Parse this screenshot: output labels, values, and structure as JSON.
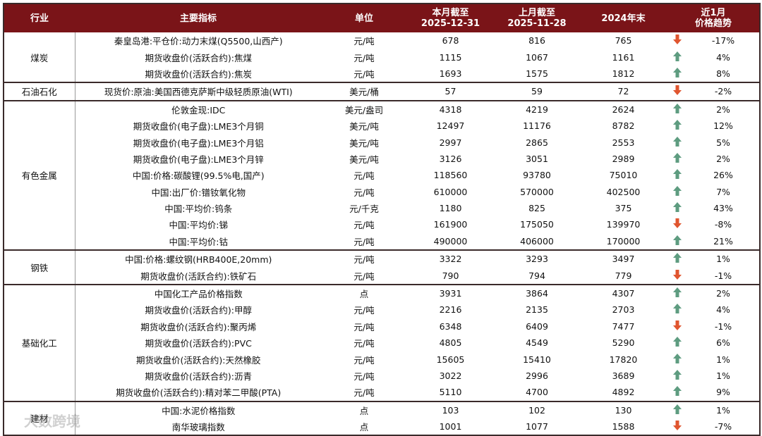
{
  "table": {
    "columns": [
      "行业",
      "主要指标",
      "单位",
      "本月截至\n2025-12-31",
      "上月截至\n2025-11-28",
      "2024年末",
      "近1月\n价格趋势"
    ],
    "groups": [
      {
        "industry": "煤炭",
        "rows": [
          {
            "indicator": "秦皇岛港:平仓价:动力末煤(Q5500,山西产)",
            "unit": "元/吨",
            "current": 678,
            "previous": 816,
            "year_end": 765,
            "arrow": "down",
            "trend": "-17%"
          },
          {
            "indicator": "期货收盘价(活跃合约):焦煤",
            "unit": "元/吨",
            "current": 1115,
            "previous": 1067,
            "year_end": 1161,
            "arrow": "up",
            "trend": "4%"
          },
          {
            "indicator": "期货收盘价(活跃合约):焦炭",
            "unit": "元/吨",
            "current": 1693,
            "previous": 1575,
            "year_end": 1812,
            "arrow": "up",
            "trend": "8%"
          }
        ]
      },
      {
        "industry": "石油石化",
        "rows": [
          {
            "indicator": "现货价:原油:美国西德克萨斯中级轻质原油(WTI)",
            "unit": "美元/桶",
            "current": 57,
            "previous": 59,
            "year_end": 72,
            "arrow": "down",
            "trend": "-2%"
          }
        ]
      },
      {
        "industry": "有色金属",
        "rows": [
          {
            "indicator": "伦敦金现:IDC",
            "unit": "美元/盎司",
            "current": 4318,
            "previous": 4219,
            "year_end": 2624,
            "arrow": "up",
            "trend": "2%"
          },
          {
            "indicator": "期货收盘价(电子盘):LME3个月铜",
            "unit": "美元/吨",
            "current": 12497,
            "previous": 11176,
            "year_end": 8782,
            "arrow": "up",
            "trend": "12%"
          },
          {
            "indicator": "期货收盘价(电子盘):LME3个月铝",
            "unit": "美元/吨",
            "current": 2997,
            "previous": 2865,
            "year_end": 2553,
            "arrow": "up",
            "trend": "5%"
          },
          {
            "indicator": "期货收盘价(电子盘):LME3个月锌",
            "unit": "美元/吨",
            "current": 3126,
            "previous": 3051,
            "year_end": 2989,
            "arrow": "up",
            "trend": "2%"
          },
          {
            "indicator": "中国:价格:碳酸锂(99.5%电,国产)",
            "unit": "元/吨",
            "current": 118560,
            "previous": 93780,
            "year_end": 75010,
            "arrow": "up",
            "trend": "26%"
          },
          {
            "indicator": "中国:出厂价:镨钕氧化物",
            "unit": "元/吨",
            "current": 610000,
            "previous": 570000,
            "year_end": 402500,
            "arrow": "up",
            "trend": "7%"
          },
          {
            "indicator": "中国:平均价:钨条",
            "unit": "元/千克",
            "current": 1180,
            "previous": 825,
            "year_end": 375,
            "arrow": "up",
            "trend": "43%"
          },
          {
            "indicator": "中国:平均价:锑",
            "unit": "元/吨",
            "current": 161900,
            "previous": 175050,
            "year_end": 139970,
            "arrow": "down",
            "trend": "-8%"
          },
          {
            "indicator": "中国:平均价:钴",
            "unit": "元/吨",
            "current": 490000,
            "previous": 406000,
            "year_end": 170000,
            "arrow": "up",
            "trend": "21%"
          }
        ]
      },
      {
        "industry": "钢铁",
        "rows": [
          {
            "indicator": "中国:价格:螺纹钢(HRB400E,20mm)",
            "unit": "元/吨",
            "current": 3322,
            "previous": 3293,
            "year_end": 3497,
            "arrow": "up",
            "trend": "1%"
          },
          {
            "indicator": "期货收盘价(活跃合约):铁矿石",
            "unit": "元/吨",
            "current": 790,
            "previous": 794,
            "year_end": 779,
            "arrow": "down",
            "trend": "-1%"
          }
        ]
      },
      {
        "industry": "基础化工",
        "rows": [
          {
            "indicator": "中国化工产品价格指数",
            "unit": "点",
            "current": 3931,
            "previous": 3864,
            "year_end": 4307,
            "arrow": "up",
            "trend": "2%"
          },
          {
            "indicator": "期货收盘价(活跃合约):甲醇",
            "unit": "元/吨",
            "current": 2216,
            "previous": 2135,
            "year_end": 2703,
            "arrow": "up",
            "trend": "4%"
          },
          {
            "indicator": "期货收盘价(活跃合约):聚丙烯",
            "unit": "元/吨",
            "current": 6348,
            "previous": 6409,
            "year_end": 7477,
            "arrow": "down",
            "trend": "-1%"
          },
          {
            "indicator": "期货收盘价(活跃合约):PVC",
            "unit": "元/吨",
            "current": 4805,
            "previous": 4549,
            "year_end": 5290,
            "arrow": "up",
            "trend": "6%"
          },
          {
            "indicator": "期货收盘价(活跃合约):天然橡胶",
            "unit": "元/吨",
            "current": 15605,
            "previous": 15410,
            "year_end": 17820,
            "arrow": "up",
            "trend": "1%"
          },
          {
            "indicator": "期货收盘价(活跃合约):沥青",
            "unit": "元/吨",
            "current": 3022,
            "previous": 2996,
            "year_end": 3689,
            "arrow": "up",
            "trend": "1%"
          },
          {
            "indicator": "期货收盘价(活跃合约):精对苯二甲酸(PTA)",
            "unit": "元/吨",
            "current": 5110,
            "previous": 4700,
            "year_end": 4892,
            "arrow": "up",
            "trend": "9%"
          }
        ]
      },
      {
        "industry": "建材",
        "rows": [
          {
            "indicator": "中国:水泥价格指数",
            "unit": "点",
            "current": 103,
            "previous": 102,
            "year_end": 130,
            "arrow": "up",
            "trend": "1%"
          },
          {
            "indicator": "南华玻璃指数",
            "unit": "点",
            "current": 1001,
            "previous": 1077,
            "year_end": 1588,
            "arrow": "down",
            "trend": "-7%"
          }
        ]
      }
    ],
    "watermark": "大数跨境"
  }
}
